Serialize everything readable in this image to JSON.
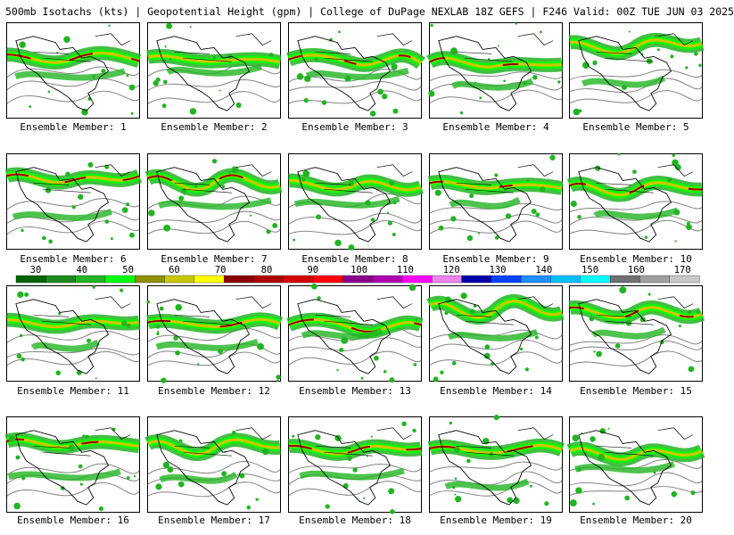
{
  "header": {
    "title": "500mb Isotachs (kts) | Geopotential Height (gpm) | College of DuPage NEXLAB   18Z GEFS | F246 Valid: 00Z TUE JUN 03 2025"
  },
  "colorbar": {
    "labels": [
      "30",
      "40",
      "50",
      "60",
      "70",
      "80",
      "90",
      "100",
      "110",
      "120",
      "130",
      "140",
      "150",
      "160",
      "170"
    ],
    "colors": [
      "#006400",
      "#1a8a1a",
      "#22b422",
      "#00ff00",
      "#8f8f00",
      "#c8c800",
      "#ffff00",
      "#8b0000",
      "#b00000",
      "#d40000",
      "#ff0000",
      "#8b008b",
      "#b000b0",
      "#ff00ff",
      "#ee82ee",
      "#0000aa",
      "#0044ff",
      "#1e90ff",
      "#00bfff",
      "#00ffff",
      "#707070",
      "#a0a0a0",
      "#c8c8c8"
    ]
  },
  "legend_colors": {
    "weak": "#22b422",
    "moderate": "#00ff00",
    "strong": "#c8c800",
    "jet_core": "#8b0000",
    "height_contour": "#808080",
    "coastline": "#000000"
  },
  "members": [
    {
      "label": "Ensemble Member: 1"
    },
    {
      "label": "Ensemble Member: 2"
    },
    {
      "label": "Ensemble Member: 3"
    },
    {
      "label": "Ensemble Member: 4"
    },
    {
      "label": "Ensemble Member: 5"
    },
    {
      "label": "Ensemble Member: 6"
    },
    {
      "label": "Ensemble Member: 7"
    },
    {
      "label": "Ensemble Member: 8"
    },
    {
      "label": "Ensemble Member: 9"
    },
    {
      "label": "Ensemble Member: 10"
    },
    {
      "label": "Ensemble Member: 11"
    },
    {
      "label": "Ensemble Member: 12"
    },
    {
      "label": "Ensemble Member: 13"
    },
    {
      "label": "Ensemble Member: 14"
    },
    {
      "label": "Ensemble Member: 15"
    },
    {
      "label": "Ensemble Member: 16"
    },
    {
      "label": "Ensemble Member: 17"
    },
    {
      "label": "Ensemble Member: 18"
    },
    {
      "label": "Ensemble Member: 19"
    },
    {
      "label": "Ensemble Member: 20"
    }
  ]
}
